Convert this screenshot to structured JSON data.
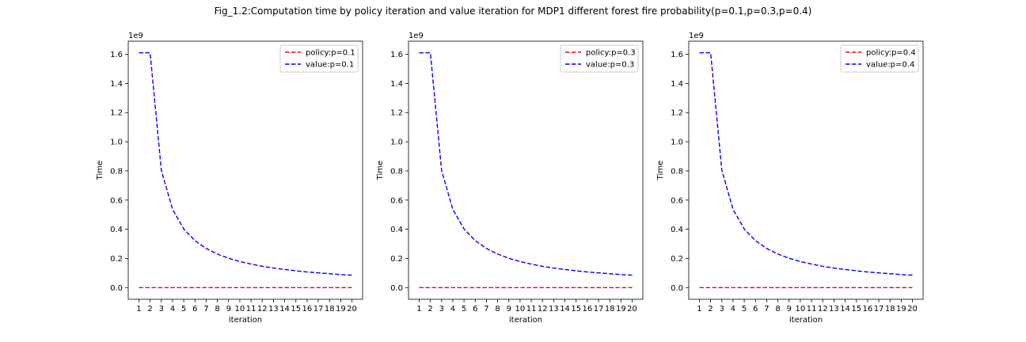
{
  "figure": {
    "title": "Fig_1.2:Computation time  by policy iteration and value iteration for MDP1 different forest fire probability(p=0.1,p=0.3,p=0.4)"
  },
  "chart_data": [
    {
      "type": "line",
      "xlabel": "iteration",
      "ylabel": "Time",
      "y_offset_label": "1e9",
      "x": [
        1,
        2,
        3,
        4,
        5,
        6,
        7,
        8,
        9,
        10,
        11,
        12,
        13,
        14,
        15,
        16,
        17,
        18,
        19,
        20
      ],
      "xlim": [
        0.05,
        20.95
      ],
      "ylim": [
        -0.08,
        1.69
      ],
      "yticks": [
        0.0,
        0.2,
        0.4,
        0.6,
        0.8,
        1.0,
        1.2,
        1.4,
        1.6
      ],
      "ytick_labels": [
        "0.0",
        "0.2",
        "0.4",
        "0.6",
        "0.8",
        "1.0",
        "1.2",
        "1.4",
        "1.6"
      ],
      "legend_position": "top-right",
      "series": [
        {
          "name": "policy:p=0.1",
          "color": "#ff0000",
          "style": "dashed",
          "values": [
            0,
            0,
            0,
            0,
            0,
            0,
            0,
            0,
            0,
            0,
            0,
            0,
            0,
            0,
            0,
            0,
            0,
            0,
            0,
            0
          ]
        },
        {
          "name": "value:p=0.1",
          "color": "#0000ff",
          "style": "dashed",
          "values": [
            1.61,
            1.61,
            0.805,
            0.537,
            0.402,
            0.322,
            0.268,
            0.23,
            0.201,
            0.179,
            0.161,
            0.146,
            0.134,
            0.124,
            0.115,
            0.107,
            0.101,
            0.095,
            0.089,
            0.085
          ]
        }
      ]
    },
    {
      "type": "line",
      "xlabel": "iteration",
      "ylabel": "Time",
      "y_offset_label": "1e9",
      "x": [
        1,
        2,
        3,
        4,
        5,
        6,
        7,
        8,
        9,
        10,
        11,
        12,
        13,
        14,
        15,
        16,
        17,
        18,
        19,
        20
      ],
      "xlim": [
        0.05,
        20.95
      ],
      "ylim": [
        -0.08,
        1.69
      ],
      "yticks": [
        0.0,
        0.2,
        0.4,
        0.6,
        0.8,
        1.0,
        1.2,
        1.4,
        1.6
      ],
      "ytick_labels": [
        "0.0",
        "0.2",
        "0.4",
        "0.6",
        "0.8",
        "1.0",
        "1.2",
        "1.4",
        "1.6"
      ],
      "legend_position": "top-right",
      "series": [
        {
          "name": "policy:p=0.3",
          "color": "#ff0000",
          "style": "dashed",
          "values": [
            0,
            0,
            0,
            0,
            0,
            0,
            0,
            0,
            0,
            0,
            0,
            0,
            0,
            0,
            0,
            0,
            0,
            0,
            0,
            0
          ]
        },
        {
          "name": "value:p=0.3",
          "color": "#0000ff",
          "style": "dashed",
          "values": [
            1.61,
            1.61,
            0.805,
            0.537,
            0.402,
            0.322,
            0.268,
            0.23,
            0.201,
            0.179,
            0.161,
            0.146,
            0.134,
            0.124,
            0.115,
            0.107,
            0.101,
            0.095,
            0.089,
            0.085
          ]
        }
      ]
    },
    {
      "type": "line",
      "xlabel": "iteration",
      "ylabel": "Time",
      "y_offset_label": "1e9",
      "x": [
        1,
        2,
        3,
        4,
        5,
        6,
        7,
        8,
        9,
        10,
        11,
        12,
        13,
        14,
        15,
        16,
        17,
        18,
        19,
        20
      ],
      "xlim": [
        0.05,
        20.95
      ],
      "ylim": [
        -0.08,
        1.69
      ],
      "yticks": [
        0.0,
        0.2,
        0.4,
        0.6,
        0.8,
        1.0,
        1.2,
        1.4,
        1.6
      ],
      "ytick_labels": [
        "0.0",
        "0.2",
        "0.4",
        "0.6",
        "0.8",
        "1.0",
        "1.2",
        "1.4",
        "1.6"
      ],
      "legend_position": "top-right",
      "series": [
        {
          "name": "policy:p=0.4",
          "color": "#ff0000",
          "style": "dashed",
          "values": [
            0,
            0,
            0,
            0,
            0,
            0,
            0,
            0,
            0,
            0,
            0,
            0,
            0,
            0,
            0,
            0,
            0,
            0,
            0,
            0
          ]
        },
        {
          "name": "value:p=0.4",
          "color": "#0000ff",
          "style": "dashed",
          "values": [
            1.61,
            1.61,
            0.805,
            0.537,
            0.402,
            0.322,
            0.268,
            0.23,
            0.201,
            0.179,
            0.161,
            0.146,
            0.134,
            0.124,
            0.115,
            0.107,
            0.101,
            0.095,
            0.089,
            0.085
          ]
        }
      ]
    }
  ]
}
